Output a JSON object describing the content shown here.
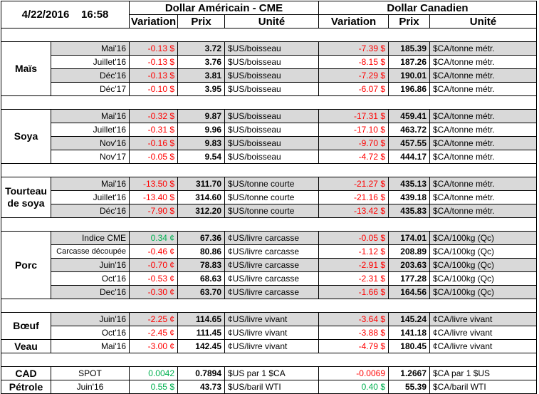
{
  "header": {
    "date": "4/22/2016",
    "time": "16:58",
    "us_title": "Dollar Américain - CME",
    "ca_title": "Dollar Canadien",
    "col_variation": "Variation",
    "col_prix": "Prix",
    "col_unite": "Unité"
  },
  "colors": {
    "negative": "#ff0000",
    "positive": "#00b050",
    "shade": "#d9d9d9"
  },
  "groups": [
    {
      "label": "Maïs",
      "rows": [
        {
          "contract": "Mai'16",
          "us_var": "-0.13 $",
          "us_prix": "3.72",
          "us_unit": "$US/boisseau",
          "ca_var": "-7.39 $",
          "ca_prix": "185.39",
          "ca_unit": "$CA/tonne métr."
        },
        {
          "contract": "Juillet'16",
          "us_var": "-0.13 $",
          "us_prix": "3.76",
          "us_unit": "$US/boisseau",
          "ca_var": "-8.15 $",
          "ca_prix": "187.26",
          "ca_unit": "$CA/tonne métr."
        },
        {
          "contract": "Déc'16",
          "us_var": "-0.13 $",
          "us_prix": "3.81",
          "us_unit": "$US/boisseau",
          "ca_var": "-7.29 $",
          "ca_prix": "190.01",
          "ca_unit": "$CA/tonne métr."
        },
        {
          "contract": "Déc'17",
          "us_var": "-0.10 $",
          "us_prix": "3.95",
          "us_unit": "$US/boisseau",
          "ca_var": "-6.07 $",
          "ca_prix": "196.86",
          "ca_unit": "$CA/tonne métr."
        }
      ]
    },
    {
      "label": "Soya",
      "rows": [
        {
          "contract": "Mai'16",
          "us_var": "-0.32 $",
          "us_prix": "9.87",
          "us_unit": "$US/boisseau",
          "ca_var": "-17.31 $",
          "ca_prix": "459.41",
          "ca_unit": "$CA/tonne métr."
        },
        {
          "contract": "Juillet'16",
          "us_var": "-0.31 $",
          "us_prix": "9.96",
          "us_unit": "$US/boisseau",
          "ca_var": "-17.10 $",
          "ca_prix": "463.72",
          "ca_unit": "$CA/tonne métr."
        },
        {
          "contract": "Nov'16",
          "us_var": "-0.16 $",
          "us_prix": "9.83",
          "us_unit": "$US/boisseau",
          "ca_var": "-9.70 $",
          "ca_prix": "457.55",
          "ca_unit": "$CA/tonne métr."
        },
        {
          "contract": "Nov'17",
          "us_var": "-0.05 $",
          "us_prix": "9.54",
          "us_unit": "$US/boisseau",
          "ca_var": "-4.72 $",
          "ca_prix": "444.17",
          "ca_unit": "$CA/tonne métr."
        }
      ]
    },
    {
      "label": "Tourteau de soya",
      "label1": "Tourteau",
      "label2": "de soya",
      "rows": [
        {
          "contract": "Mai'16",
          "us_var": "-13.50 $",
          "us_prix": "311.70",
          "us_unit": "$US/tonne courte",
          "ca_var": "-21.27 $",
          "ca_prix": "435.13",
          "ca_unit": "$CA/tonne métr."
        },
        {
          "contract": "Juillet'16",
          "us_var": "-13.40 $",
          "us_prix": "314.60",
          "us_unit": "$US/tonne courte",
          "ca_var": "-21.16 $",
          "ca_prix": "439.18",
          "ca_unit": "$CA/tonne métr."
        },
        {
          "contract": "Déc'16",
          "us_var": "-7.90 $",
          "us_prix": "312.20",
          "us_unit": "$US/tonne courte",
          "ca_var": "-13.42 $",
          "ca_prix": "435.83",
          "ca_unit": "$CA/tonne métr."
        }
      ]
    },
    {
      "label": "Porc",
      "rows": [
        {
          "contract": "Indice CME",
          "us_var": "0.34 ¢",
          "us_prix": "67.36",
          "us_unit": "¢US/livre carcasse",
          "ca_var": "-0.05 $",
          "ca_prix": "174.01",
          "ca_unit": "$CA/100kg (Qc)"
        },
        {
          "contract": "Carcasse découpée",
          "us_var": "-0.46 ¢",
          "us_prix": "80.86",
          "us_unit": "¢US/livre carcasse",
          "ca_var": "-1.12 $",
          "ca_prix": "208.89",
          "ca_unit": "$CA/100kg (Qc)"
        },
        {
          "contract": "Juin'16",
          "us_var": "-0.70 ¢",
          "us_prix": "78.83",
          "us_unit": "¢US/livre carcasse",
          "ca_var": "-2.91 $",
          "ca_prix": "203.63",
          "ca_unit": "$CA/100kg (Qc)"
        },
        {
          "contract": "Oct'16",
          "us_var": "-0.53 ¢",
          "us_prix": "68.63",
          "us_unit": "¢US/livre carcasse",
          "ca_var": "-2.31 $",
          "ca_prix": "177.28",
          "ca_unit": "$CA/100kg (Qc)"
        },
        {
          "contract": "Dec'16",
          "us_var": "-0.30 ¢",
          "us_prix": "63.70",
          "us_unit": "¢US/livre carcasse",
          "ca_var": "-1.66 $",
          "ca_prix": "164.56",
          "ca_unit": "$CA/100kg (Qc)"
        }
      ]
    },
    {
      "label": "Bœuf",
      "rows": [
        {
          "contract": "Juin'16",
          "us_var": "-2.25 ¢",
          "us_prix": "114.65",
          "us_unit": "¢US/livre vivant",
          "ca_var": "-3.64 $",
          "ca_prix": "145.24",
          "ca_unit": "¢CA/livre vivant"
        },
        {
          "contract": "Oct'16",
          "us_var": "-2.45 ¢",
          "us_prix": "111.45",
          "us_unit": "¢US/livre vivant",
          "ca_var": "-3.88 $",
          "ca_prix": "141.18",
          "ca_unit": "¢CA/livre vivant"
        }
      ]
    },
    {
      "label": "Veau",
      "rows": [
        {
          "contract": "Mai'16",
          "us_var": "-3.00 ¢",
          "us_prix": "142.45",
          "us_unit": "¢US/livre vivant",
          "ca_var": "-4.79 $",
          "ca_prix": "180.45",
          "ca_unit": "¢CA/livre vivant"
        }
      ]
    },
    {
      "label": "CAD",
      "rows": [
        {
          "contract": "SPOT",
          "us_var": "0.0042",
          "us_prix": "0.7894",
          "us_unit": "$US par 1 $CA",
          "ca_var": "-0.0069",
          "ca_prix": "1.2667",
          "ca_unit": "$CA par 1 $US"
        }
      ]
    },
    {
      "label": "Pétrole",
      "rows": [
        {
          "contract": "Juin'16",
          "us_var": "0.55 $",
          "us_prix": "43.73",
          "us_unit": "$US/baril WTI",
          "ca_var": "0.40 $",
          "ca_prix": "55.39",
          "ca_unit": "$CA/baril WTI"
        }
      ]
    }
  ]
}
